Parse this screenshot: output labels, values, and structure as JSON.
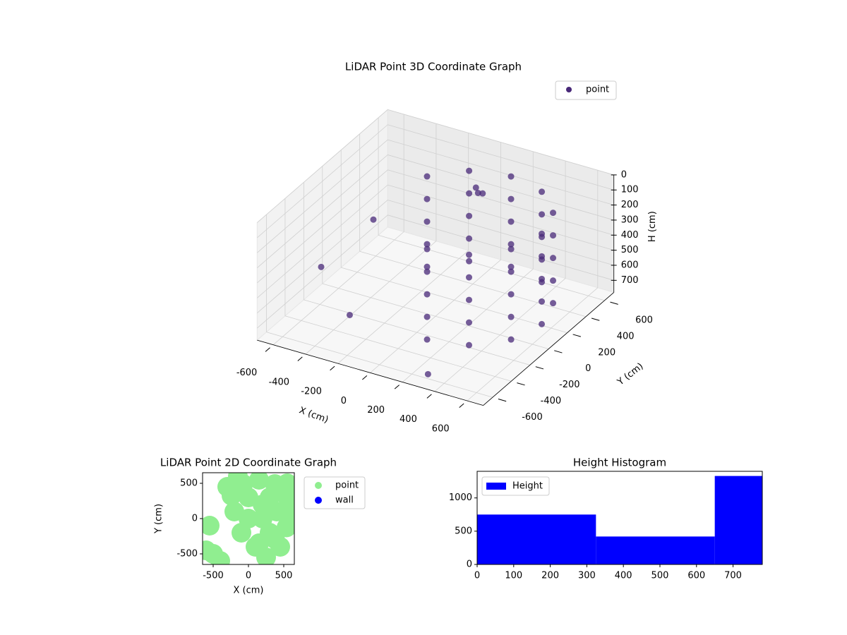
{
  "chart_data": [
    {
      "type": "scatter3d",
      "title": "LiDAR Point 3D Coordinate Graph",
      "xlabel": "X (cm)",
      "ylabel": "Y (cm)",
      "zlabel": "H (cm)",
      "xlim": [
        -700,
        700
      ],
      "ylim": [
        -700,
        700
      ],
      "zlim": [
        0,
        780
      ],
      "z_inverted": true,
      "xticks": [
        -600,
        -400,
        -200,
        0,
        200,
        400,
        600
      ],
      "yticks": [
        -600,
        -400,
        -200,
        0,
        200,
        400,
        600
      ],
      "zticks": [
        0,
        100,
        200,
        300,
        400,
        500,
        600,
        700
      ],
      "legend": "upper right",
      "grid": true,
      "series": [
        {
          "name": "point",
          "color": "#482878",
          "x": [
            150,
            375,
            540,
            600,
            540,
            375,
            150,
            -75,
            -240,
            150,
            375,
            540,
            600,
            540,
            375,
            150,
            -75,
            -240,
            150,
            375,
            540,
            600,
            540,
            375,
            150,
            -75,
            -240,
            150,
            375,
            540,
            600,
            540,
            375,
            150,
            -75,
            -240,
            150,
            375,
            540,
            600,
            540,
            375,
            150,
            -75,
            -240,
            -50,
            -20,
            -60,
            -650,
            -500,
            -300,
            300
          ],
          "y": [
            -350,
            -290,
            -125,
            100,
            325,
            490,
            550,
            490,
            325,
            -350,
            -290,
            -125,
            100,
            325,
            490,
            550,
            490,
            325,
            -350,
            -290,
            -125,
            100,
            325,
            490,
            550,
            490,
            325,
            -350,
            -290,
            -125,
            100,
            325,
            490,
            550,
            490,
            325,
            -350,
            -290,
            -125,
            100,
            325,
            490,
            550,
            490,
            325,
            520,
            540,
            560,
            -100,
            200,
            -400,
            -600
          ],
          "h": [
            100,
            100,
            100,
            100,
            100,
            100,
            100,
            100,
            100,
            250,
            250,
            250,
            250,
            250,
            250,
            250,
            250,
            250,
            400,
            400,
            400,
            400,
            400,
            400,
            400,
            400,
            400,
            550,
            550,
            550,
            550,
            550,
            550,
            550,
            550,
            550,
            700,
            700,
            700,
            700,
            700,
            700,
            700,
            700,
            700,
            220,
            260,
            280,
            600,
            400,
            650,
            750
          ]
        }
      ]
    },
    {
      "type": "scatter",
      "title": "LiDAR Point 2D Coordinate Graph",
      "xlabel": "X (cm)",
      "ylabel": "Y (cm)",
      "xlim": [
        -650,
        650
      ],
      "ylim": [
        -650,
        650
      ],
      "xticks": [
        -500,
        0,
        500
      ],
      "yticks": [
        -500,
        0,
        500
      ],
      "legend": "outside upper right",
      "series": [
        {
          "name": "point",
          "color": "#90ee90",
          "x": [
            150,
            375,
            540,
            600,
            540,
            375,
            150,
            -75,
            -240,
            0,
            200,
            300,
            100,
            300,
            0,
            -200,
            400,
            200,
            -100,
            -500,
            -600,
            -400,
            -550,
            -300,
            450,
            250,
            -150,
            550
          ],
          "y": [
            -350,
            -290,
            -125,
            100,
            325,
            490,
            550,
            490,
            325,
            0,
            0,
            -200,
            -400,
            300,
            300,
            100,
            100,
            200,
            -200,
            -500,
            -450,
            -600,
            -100,
            450,
            -400,
            -550,
            600,
            500
          ]
        },
        {
          "name": "wall",
          "color": "#0000ff",
          "x": [],
          "y": []
        }
      ]
    },
    {
      "type": "histogram",
      "title": "Height Histogram",
      "bins": [
        0,
        325,
        650,
        780
      ],
      "values": [
        750,
        420,
        1330
      ],
      "color": "#0000ff",
      "xlim": [
        0,
        780
      ],
      "ylim": [
        0,
        1400
      ],
      "xticks": [
        0,
        100,
        200,
        300,
        400,
        500,
        600,
        700
      ],
      "yticks": [
        0,
        500,
        1000
      ],
      "legend": "upper left",
      "series_name": "Height"
    }
  ]
}
